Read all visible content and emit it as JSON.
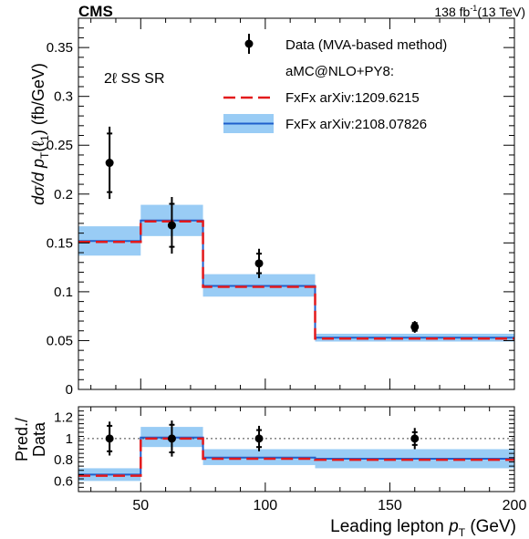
{
  "header": {
    "experiment": "CMS",
    "lumi_value": "138 fb",
    "lumi_exponent": "-1",
    "energy": "(13 TeV)"
  },
  "region_label": "2ℓ SS SR",
  "colors": {
    "data": "#000000",
    "fxfx2019_line": "#e31a1c",
    "fxfx2021_line": "#1f5fcc",
    "fxfx2021_band": "#99ccf5",
    "reference_line": "#444444"
  },
  "legend": {
    "data_label": "Data (MVA-based method)",
    "generator_label": "aMC@NLO+PY8:",
    "fxfx2019_label": "FxFx arXiv:1209.6215",
    "fxfx2021_label": "FxFx arXiv:2108.07826",
    "placement": "top-right"
  },
  "chart_data": [
    {
      "type": "line",
      "panel": "main",
      "ylabel_parts": {
        "d1": "dσ/d ",
        "p": "p",
        "sub_T": "T",
        "arg": "(ℓ",
        "sub_1": "1",
        "close": ")",
        "unit": " (fb/GeV)"
      },
      "xlim": [
        25,
        200
      ],
      "ylim": [
        0,
        0.38
      ],
      "yticks": [
        0,
        0.05,
        0.1,
        0.15,
        0.2,
        0.25,
        0.3,
        0.35
      ],
      "ytick_labels": [
        "0",
        "0.05",
        "0.1",
        "0.15",
        "0.2",
        "0.25",
        "0.3",
        "0.35"
      ],
      "bin_edges": [
        25,
        50,
        75,
        120,
        200
      ],
      "series": [
        {
          "name": "Data (MVA-based method)",
          "style": "points",
          "x": [
            37.5,
            62.5,
            97.5,
            160
          ],
          "values": [
            0.232,
            0.168,
            0.129,
            0.064
          ],
          "err_stat": [
            0.03,
            0.022,
            0.01,
            0.004
          ],
          "err_total": [
            0.037,
            0.029,
            0.015,
            0.006
          ]
        },
        {
          "name": "FxFx arXiv:1209.6215",
          "style": "dashed-step",
          "values": [
            0.151,
            0.172,
            0.105,
            0.052
          ]
        },
        {
          "name": "FxFx arXiv:2108.07826",
          "style": "step-with-band",
          "values": [
            0.152,
            0.173,
            0.106,
            0.053
          ],
          "band_low": [
            0.137,
            0.157,
            0.095,
            0.049
          ],
          "band_high": [
            0.167,
            0.189,
            0.118,
            0.057
          ]
        }
      ]
    },
    {
      "type": "line",
      "panel": "ratio",
      "ylabel": "Pred./Data",
      "ylabel_line1": "Pred./",
      "ylabel_line2": "Data",
      "xlim": [
        25,
        200
      ],
      "ylim": [
        0.5,
        1.3
      ],
      "yticks": [
        0.6,
        0.8,
        1,
        1.2
      ],
      "ytick_labels": [
        "0.6",
        "0.8",
        "1",
        "1.2"
      ],
      "xticks": [
        50,
        100,
        150,
        200
      ],
      "xtick_labels": [
        "50",
        "100",
        "150",
        "200"
      ],
      "xlabel_parts": {
        "text": "Leading lepton ",
        "p": "p",
        "sub_T": "T",
        "unit": " (GeV)"
      },
      "reference_line": 1.0,
      "bin_edges": [
        25,
        50,
        75,
        120,
        200
      ],
      "series": [
        {
          "name": "Data (MVA-based method)",
          "style": "points",
          "x": [
            37.5,
            62.5,
            97.5,
            160
          ],
          "values": [
            1,
            1,
            1,
            1
          ],
          "err_stat": [
            0.12,
            0.13,
            0.08,
            0.06
          ],
          "err_total": [
            0.16,
            0.17,
            0.12,
            0.1
          ]
        },
        {
          "name": "FxFx arXiv:1209.6215",
          "style": "dashed-step",
          "values": [
            0.65,
            1.0,
            0.81,
            0.8
          ]
        },
        {
          "name": "FxFx arXiv:2108.07826",
          "style": "step-with-band",
          "values": [
            0.66,
            1.01,
            0.82,
            0.81
          ],
          "band_low": [
            0.6,
            0.92,
            0.75,
            0.72
          ],
          "band_high": [
            0.72,
            1.11,
            0.9,
            0.9
          ]
        }
      ]
    }
  ]
}
